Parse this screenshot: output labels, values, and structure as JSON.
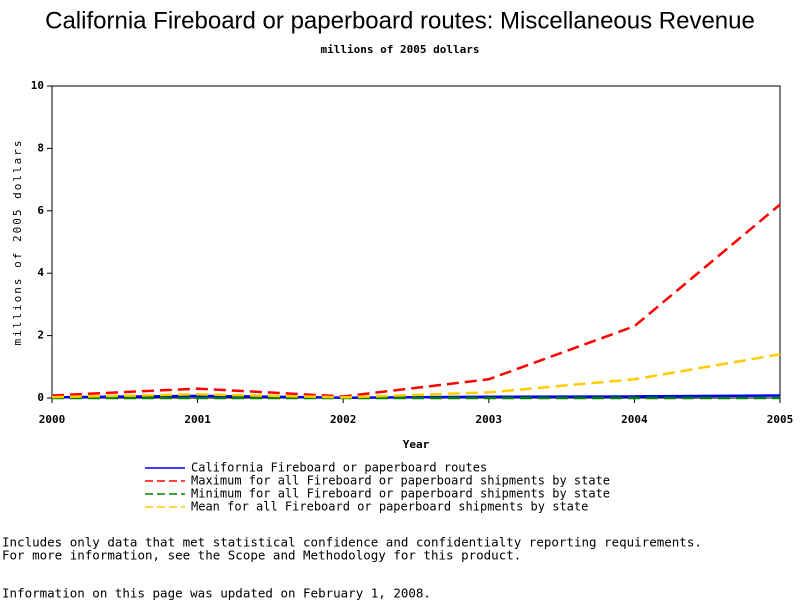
{
  "chart_data": {
    "type": "line",
    "title": "California Fireboard or paperboard routes: Miscellaneous Revenue",
    "subtitle": "millions of 2005 dollars",
    "x_label": "Year",
    "y_label": "millions of 2005 dollars",
    "x": [
      2000,
      2001,
      2002,
      2003,
      2004,
      2005
    ],
    "xlim": [
      2000,
      2005
    ],
    "xticks": [
      2000,
      2001,
      2002,
      2003,
      2004,
      2005
    ],
    "ylim": [
      0,
      10
    ],
    "yticks": [
      0,
      2,
      4,
      6,
      8,
      10
    ],
    "series": [
      {
        "name": "California Fireboard or paperboard routes",
        "color": "#0000ff",
        "dash": false,
        "values": [
          0.02,
          0.07,
          0.01,
          0.04,
          0.05,
          0.08
        ]
      },
      {
        "name": "Maximum for all Fireboard or paperboard shipments by state",
        "color": "#ff0000",
        "dash": true,
        "values": [
          0.08,
          0.3,
          0.05,
          0.6,
          2.3,
          6.2
        ]
      },
      {
        "name": "Minimum for all Fireboard or paperboard shipments by state",
        "color": "#008000",
        "dash": true,
        "values": [
          0,
          0,
          0,
          0,
          0,
          0
        ]
      },
      {
        "name": "Mean for all Fireboard or paperboard shipments by state",
        "color": "#ffcc00",
        "dash": true,
        "values": [
          0.03,
          0.12,
          0.02,
          0.18,
          0.6,
          1.4
        ]
      }
    ],
    "notes": [
      "Includes only data that met statistical confidence and confidentialty reporting requirements.",
      "For more information, see the Scope and Methodology for this product.",
      "Information on this page was updated on February 1, 2008."
    ]
  }
}
